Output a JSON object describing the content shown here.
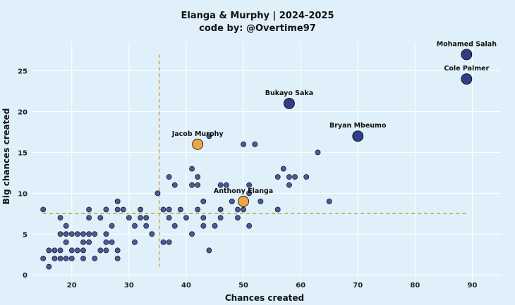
{
  "chart_data": {
    "type": "scatter",
    "title": "Elanga & Murphy | 2024-2025",
    "subtitle": "code by: @Overtime97",
    "xlabel": "Chances created",
    "ylabel": "Big chances created",
    "xlim": [
      13,
      95
    ],
    "ylim": [
      -0.5,
      28.5
    ],
    "xticks": [
      20,
      30,
      40,
      50,
      60,
      70,
      80,
      90
    ],
    "yticks": [
      0,
      5,
      10,
      15,
      20,
      25
    ],
    "grid": true,
    "reference_lines": {
      "x": 35.3,
      "y": 7.5
    },
    "colors": {
      "background": "#dff0fa",
      "grid": "#ffffff",
      "others": "#2f3f86",
      "highlighted_players": "#f0a445",
      "labeled_players": "#2f3f86",
      "reference_line": "#c9a227",
      "outline": "#000000"
    },
    "highlighted": [
      {
        "label": "Jacob Murphy",
        "x": 42,
        "y": 16
      },
      {
        "label": "Anthony Elanga",
        "x": 50,
        "y": 9
      }
    ],
    "labeled": [
      {
        "label": "Mohamed Salah",
        "x": 89,
        "y": 27
      },
      {
        "label": "Cole Palmer",
        "x": 89,
        "y": 24
      },
      {
        "label": "Bukayo Saka",
        "x": 58,
        "y": 21
      },
      {
        "label": "Bryan Mbeumo",
        "x": 70,
        "y": 17
      }
    ],
    "others": [
      [
        15,
        8
      ],
      [
        15,
        2
      ],
      [
        16,
        3
      ],
      [
        16,
        1
      ],
      [
        17,
        2
      ],
      [
        17,
        3
      ],
      [
        18,
        7
      ],
      [
        18,
        5
      ],
      [
        18,
        3
      ],
      [
        18,
        2
      ],
      [
        19,
        6
      ],
      [
        19,
        5
      ],
      [
        19,
        4
      ],
      [
        19,
        2
      ],
      [
        20,
        3
      ],
      [
        20,
        2
      ],
      [
        20,
        5
      ],
      [
        21,
        5
      ],
      [
        21,
        3
      ],
      [
        22,
        5
      ],
      [
        22,
        4
      ],
      [
        22,
        3
      ],
      [
        22,
        2
      ],
      [
        23,
        8
      ],
      [
        23,
        7
      ],
      [
        23,
        5
      ],
      [
        23,
        4
      ],
      [
        24,
        5
      ],
      [
        24,
        2
      ],
      [
        25,
        7
      ],
      [
        25,
        3
      ],
      [
        26,
        5
      ],
      [
        26,
        4
      ],
      [
        26,
        3
      ],
      [
        26,
        8
      ],
      [
        27,
        4
      ],
      [
        27,
        6
      ],
      [
        28,
        9
      ],
      [
        28,
        8
      ],
      [
        28,
        3
      ],
      [
        28,
        2
      ],
      [
        29,
        8
      ],
      [
        30,
        7
      ],
      [
        31,
        6
      ],
      [
        31,
        4
      ],
      [
        32,
        8
      ],
      [
        32,
        7
      ],
      [
        33,
        6
      ],
      [
        33,
        7
      ],
      [
        34,
        5
      ],
      [
        35,
        10
      ],
      [
        36,
        8
      ],
      [
        36,
        4
      ],
      [
        37,
        12
      ],
      [
        37,
        8
      ],
      [
        37,
        7
      ],
      [
        37,
        4
      ],
      [
        38,
        11
      ],
      [
        38,
        6
      ],
      [
        39,
        8
      ],
      [
        40,
        7
      ],
      [
        41,
        13
      ],
      [
        41,
        11
      ],
      [
        41,
        5
      ],
      [
        42,
        12
      ],
      [
        42,
        11
      ],
      [
        42,
        8
      ],
      [
        43,
        9
      ],
      [
        43,
        7
      ],
      [
        43,
        6
      ],
      [
        44,
        17
      ],
      [
        44,
        3
      ],
      [
        45,
        6
      ],
      [
        46,
        11
      ],
      [
        46,
        8
      ],
      [
        46,
        7
      ],
      [
        47,
        11
      ],
      [
        48,
        9
      ],
      [
        49,
        8
      ],
      [
        49,
        7
      ],
      [
        50,
        16
      ],
      [
        50,
        8
      ],
      [
        51,
        11
      ],
      [
        51,
        10
      ],
      [
        51,
        6
      ],
      [
        52,
        16
      ],
      [
        53,
        9
      ],
      [
        56,
        12
      ],
      [
        56,
        8
      ],
      [
        57,
        13
      ],
      [
        58,
        12
      ],
      [
        58,
        11
      ],
      [
        59,
        12
      ],
      [
        61,
        12
      ],
      [
        63,
        15
      ],
      [
        65,
        9
      ]
    ]
  }
}
